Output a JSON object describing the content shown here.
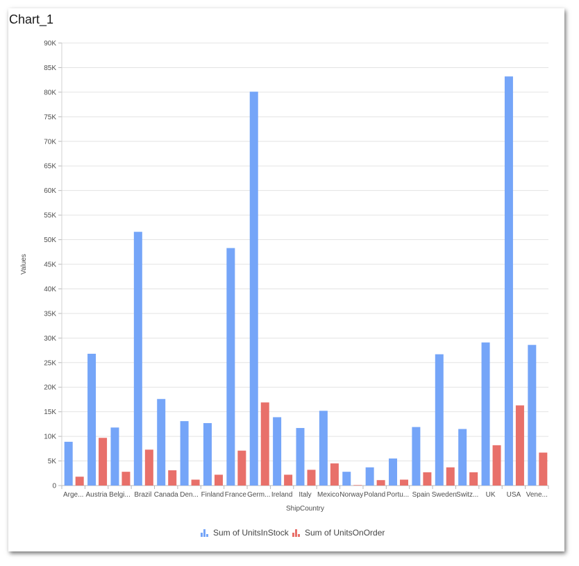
{
  "window": {
    "title": "Chart_1"
  },
  "chart_data": {
    "type": "bar",
    "title": "",
    "xlabel": "ShipCountry",
    "ylabel": "Values",
    "ylim": [
      0,
      90000
    ],
    "ytick_step": 5000,
    "ytick_labels": [
      "0",
      "5K",
      "10K",
      "15K",
      "20K",
      "25K",
      "30K",
      "35K",
      "40K",
      "45K",
      "50K",
      "55K",
      "60K",
      "65K",
      "70K",
      "75K",
      "80K",
      "85K",
      "90K"
    ],
    "grid": true,
    "legend": "bottom-center",
    "categories": [
      "Arge...",
      "Austria",
      "Belgi...",
      "Brazil",
      "Canada",
      "Den...",
      "Finland",
      "France",
      "Germ...",
      "Ireland",
      "Italy",
      "Mexico",
      "Norway",
      "Poland",
      "Portu...",
      "Spain",
      "Sweden",
      "Switz...",
      "UK",
      "USA",
      "Vene..."
    ],
    "series": [
      {
        "name": "Sum of UnitsInStock",
        "color": "#75a5f8",
        "values": [
          8900,
          26800,
          11800,
          51600,
          17600,
          13100,
          12700,
          48300,
          80100,
          13900,
          11700,
          15200,
          2800,
          3700,
          5500,
          11900,
          26700,
          11500,
          29100,
          83200,
          28600
        ]
      },
      {
        "name": "Sum of UnitsOnOrder",
        "color": "#e8706a",
        "values": [
          1800,
          9700,
          2800,
          7300,
          3100,
          1200,
          2200,
          7100,
          16900,
          2200,
          3200,
          4500,
          100,
          1100,
          1200,
          2700,
          3700,
          2700,
          8200,
          16300,
          6700
        ]
      }
    ]
  }
}
